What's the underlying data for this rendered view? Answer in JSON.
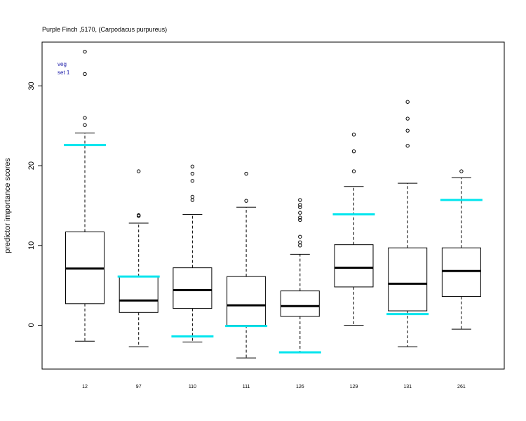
{
  "chart_data": {
    "type": "boxplot",
    "title": "Purple Finch ,5170, (Carpodacus purpureus)",
    "xlabel": "",
    "ylabel": "predictor importance scores",
    "ylim": [
      -5.5,
      35.5
    ],
    "yticks": [
      0,
      10,
      20,
      30
    ],
    "legend": {
      "lines": [
        "veg",
        "set 1"
      ],
      "placement": "top-left",
      "color": "#1a1aa8"
    },
    "reference_color": "#00e5ee",
    "categories": [
      "12",
      "97",
      "110",
      "111",
      "126",
      "129",
      "131",
      "261"
    ],
    "boxes": [
      {
        "label": "12",
        "whisker_low": -2.0,
        "q1": 2.7,
        "median": 7.1,
        "q3": 11.7,
        "whisker_high": 24.1,
        "outliers": [
          25.1,
          26.0,
          31.5,
          34.3
        ],
        "reference": 22.6
      },
      {
        "label": "97",
        "whisker_low": -2.7,
        "q1": 1.6,
        "median": 3.1,
        "q3": 6.1,
        "whisker_high": 12.8,
        "outliers": [
          13.7,
          13.8,
          19.3
        ],
        "reference": 6.1
      },
      {
        "label": "110",
        "whisker_low": -2.1,
        "q1": 2.1,
        "median": 4.4,
        "q3": 7.2,
        "whisker_high": 13.9,
        "outliers": [
          15.7,
          16.1,
          18.1,
          19.0,
          19.9
        ],
        "reference": -1.4
      },
      {
        "label": "111",
        "whisker_low": -4.1,
        "q1": 0.0,
        "median": 2.5,
        "q3": 6.1,
        "whisker_high": 14.8,
        "outliers": [
          15.6,
          19.0
        ],
        "reference": -0.1
      },
      {
        "label": "126",
        "whisker_low": -3.4,
        "q1": 1.1,
        "median": 2.4,
        "q3": 4.3,
        "whisker_high": 8.9,
        "outliers": [
          10.0,
          10.4,
          11.1,
          13.2,
          13.5,
          14.1,
          14.8,
          15.1,
          15.7
        ],
        "reference": -3.4
      },
      {
        "label": "129",
        "whisker_low": 0.0,
        "q1": 4.8,
        "median": 7.2,
        "q3": 10.1,
        "whisker_high": 17.4,
        "outliers": [
          19.3,
          21.8,
          23.9
        ],
        "reference": 13.9
      },
      {
        "label": "131",
        "whisker_low": -2.7,
        "q1": 1.8,
        "median": 5.2,
        "q3": 9.7,
        "whisker_high": 17.8,
        "outliers": [
          22.5,
          24.4,
          25.9,
          28.0
        ],
        "reference": 1.4
      },
      {
        "label": "261",
        "whisker_low": -0.5,
        "q1": 3.6,
        "median": 6.8,
        "q3": 9.7,
        "whisker_high": 18.5,
        "outliers": [
          19.3
        ],
        "reference": 15.7
      }
    ]
  }
}
